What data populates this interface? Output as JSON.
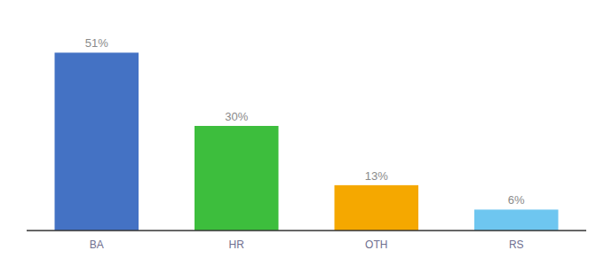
{
  "chart_data": {
    "type": "bar",
    "categories": [
      "BA",
      "HR",
      "OTH",
      "RS"
    ],
    "values": [
      51,
      30,
      13,
      6
    ],
    "value_labels": [
      "51%",
      "30%",
      "13%",
      "6%"
    ],
    "colors": [
      "#4472c4",
      "#3dbe3d",
      "#f5a800",
      "#6ec6f0"
    ],
    "ylim": [
      0,
      60
    ],
    "data_labels": true,
    "tick_labels": "x",
    "grid": false
  }
}
